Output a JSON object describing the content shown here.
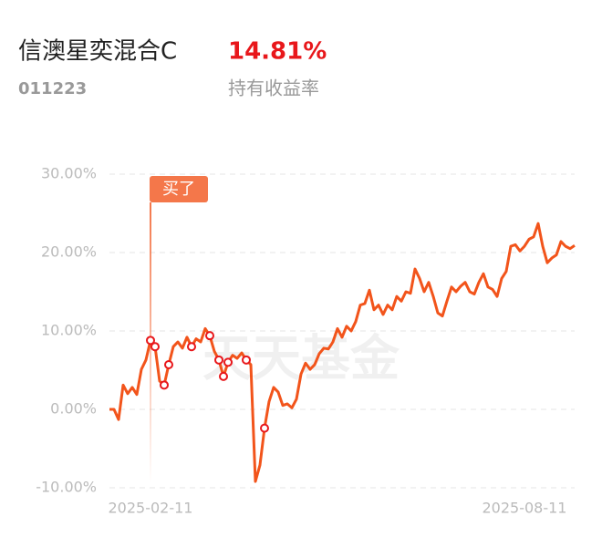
{
  "header": {
    "title": "信澳星奕混合C",
    "return_value": "14.81%",
    "code": "011223",
    "return_label": "持有收益率"
  },
  "chart_data": {
    "type": "line",
    "categories": [
      null,
      null,
      null,
      null,
      null,
      null,
      null,
      null,
      null,
      "2025-02-11",
      null,
      null,
      null,
      null,
      null,
      null,
      null,
      null,
      null,
      null,
      null,
      null,
      null,
      null,
      null,
      null,
      null,
      null,
      null,
      null,
      null,
      null,
      null,
      null,
      null,
      null,
      null,
      null,
      null,
      null,
      null,
      null,
      null,
      null,
      null,
      null,
      null,
      null,
      null,
      null,
      null,
      null,
      null,
      null,
      null,
      null,
      null,
      null,
      null,
      null,
      null,
      null,
      null,
      null,
      null,
      null,
      null,
      null,
      null,
      null,
      null,
      null,
      null,
      null,
      null,
      null,
      null,
      null,
      null,
      null,
      null,
      null,
      null,
      null,
      null,
      null,
      null,
      null,
      null,
      null,
      null,
      "2025-08-11",
      null,
      null,
      null,
      null,
      null,
      null,
      null,
      null,
      null,
      null,
      null
    ],
    "values": [
      0,
      0,
      -1.3,
      3.1,
      2,
      2.8,
      1.9,
      5.1,
      6.3,
      8.8,
      8,
      3.6,
      3.1,
      5.7,
      8,
      8.6,
      7.8,
      9.2,
      8,
      9,
      8.6,
      10.3,
      9.4,
      7.4,
      6.3,
      4.2,
      6,
      6.9,
      6.5,
      7.2,
      6.3,
      5.7,
      -9.2,
      -7.1,
      -2.4,
      1,
      2.8,
      2.2,
      0.5,
      0.7,
      0.2,
      1.3,
      4.5,
      5.9,
      5.1,
      5.7,
      7.1,
      7.8,
      7.7,
      8.6,
      10.3,
      9.2,
      10.6,
      10,
      11.2,
      13.3,
      13.5,
      15.2,
      12.7,
      13.3,
      12.1,
      13.3,
      12.7,
      14.4,
      13.8,
      15,
      14.8,
      17.9,
      16.7,
      15,
      16.2,
      14.4,
      12.3,
      11.9,
      13.8,
      15.6,
      15,
      15.7,
      16.2,
      15,
      14.7,
      16.2,
      17.3,
      15.6,
      15.3,
      14.4,
      16.7,
      17.6,
      20.8,
      21,
      20.2,
      20.8,
      21.7,
      22,
      23.7,
      20.8,
      18.7,
      19.3,
      19.7,
      21.4,
      20.8,
      20.5,
      20.9
    ],
    "color": "#f2541b",
    "ylim": [
      -10,
      30
    ],
    "yticks": [
      {
        "value": 30,
        "label": "30.00%"
      },
      {
        "value": 20,
        "label": "20.00%"
      },
      {
        "value": 10,
        "label": "10.00%"
      },
      {
        "value": 0,
        "label": "0.00%"
      },
      {
        "value": -10,
        "label": "-10.00%"
      }
    ],
    "grid": true,
    "trade_markers": [
      9,
      10,
      12,
      13,
      18,
      22,
      24,
      25,
      26,
      30,
      34
    ],
    "buy_annotation": {
      "label": "买了",
      "index": 9
    },
    "watermark": "天天基金"
  }
}
